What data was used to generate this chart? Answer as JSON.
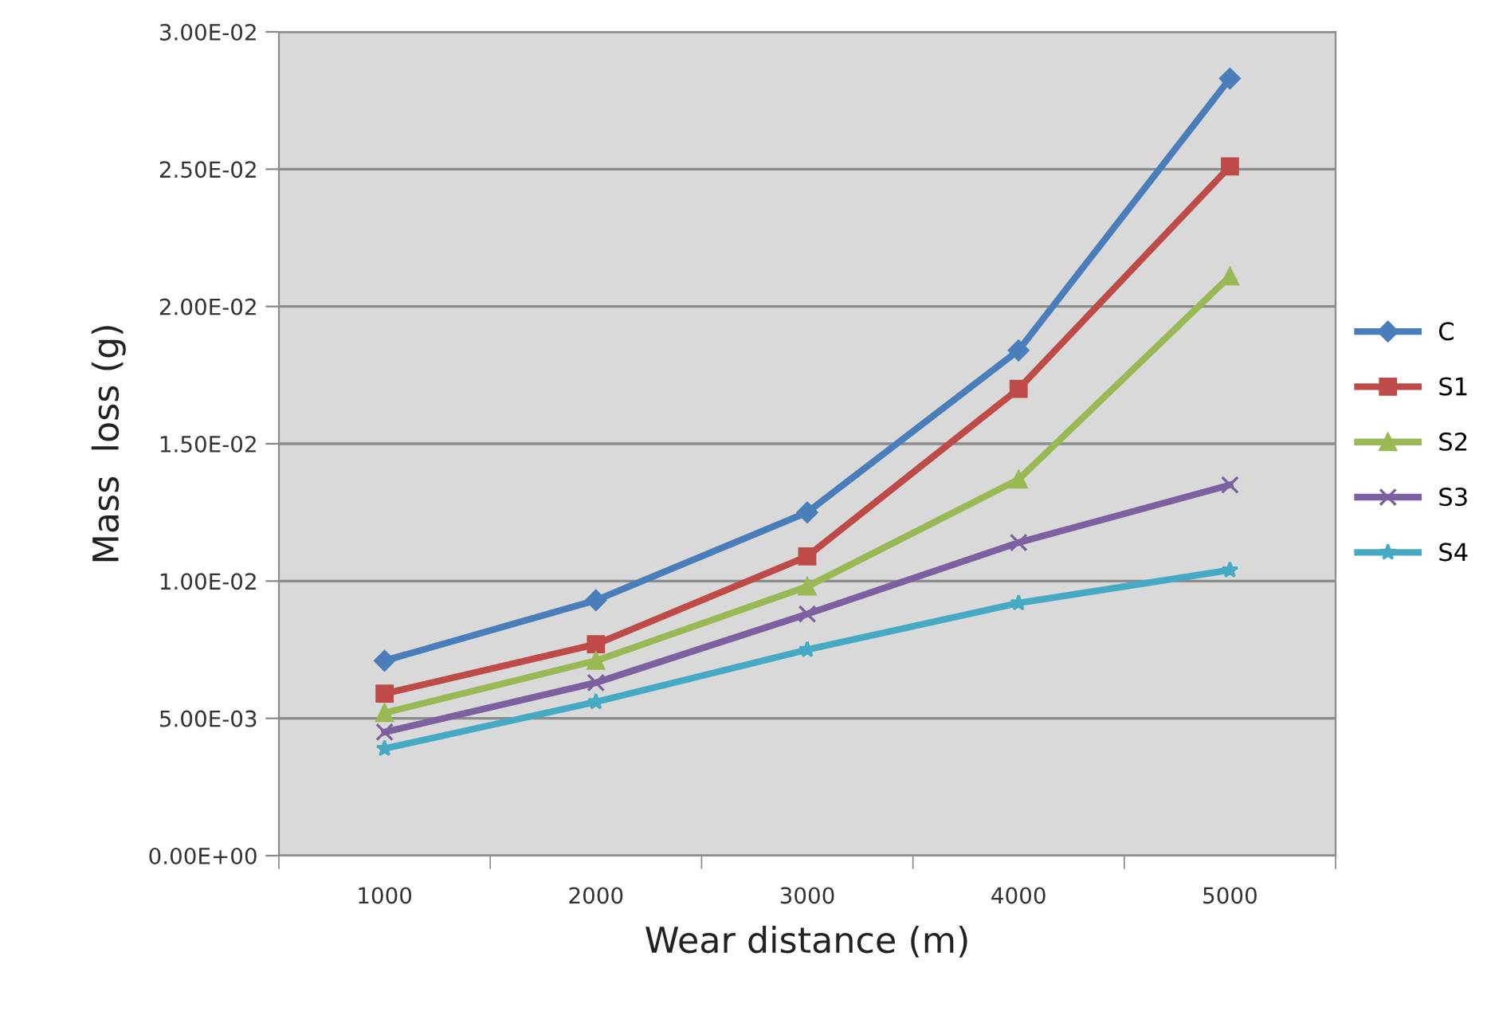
{
  "chart_data": {
    "type": "line",
    "xlabel": "Wear distance (m)",
    "ylabel": "Mass  loss (g)",
    "categories": [
      "1000",
      "2000",
      "3000",
      "4000",
      "5000"
    ],
    "series": [
      {
        "name": "C",
        "color": "#4a7ebb",
        "marker": "diamond",
        "values": [
          0.0071,
          0.0093,
          0.0125,
          0.0184,
          0.0283
        ]
      },
      {
        "name": "S1",
        "color": "#be4b48",
        "marker": "square",
        "values": [
          0.0059,
          0.0077,
          0.0109,
          0.017,
          0.0251
        ]
      },
      {
        "name": "S2",
        "color": "#98b954",
        "marker": "triangle",
        "values": [
          0.0052,
          0.0071,
          0.0098,
          0.0137,
          0.0211
        ]
      },
      {
        "name": "S3",
        "color": "#7d60a0",
        "marker": "cross",
        "values": [
          0.0045,
          0.0063,
          0.0088,
          0.0114,
          0.0135
        ]
      },
      {
        "name": "S4",
        "color": "#46aac5",
        "marker": "star",
        "values": [
          0.0039,
          0.0056,
          0.0075,
          0.0092,
          0.0104
        ]
      }
    ],
    "ylim": [
      0,
      0.03
    ],
    "yticks": [
      {
        "value": 0,
        "label": "0.00E+00"
      },
      {
        "value": 0.005,
        "label": "5.00E-03"
      },
      {
        "value": 0.01,
        "label": "1.00E-02"
      },
      {
        "value": 0.015,
        "label": "1.50E-02"
      },
      {
        "value": 0.02,
        "label": "2.00E-02"
      },
      {
        "value": 0.025,
        "label": "2.50E-02"
      },
      {
        "value": 0.03,
        "label": "3.00E-02"
      }
    ],
    "grid": "y",
    "legend": "right",
    "line_style": "solid"
  }
}
